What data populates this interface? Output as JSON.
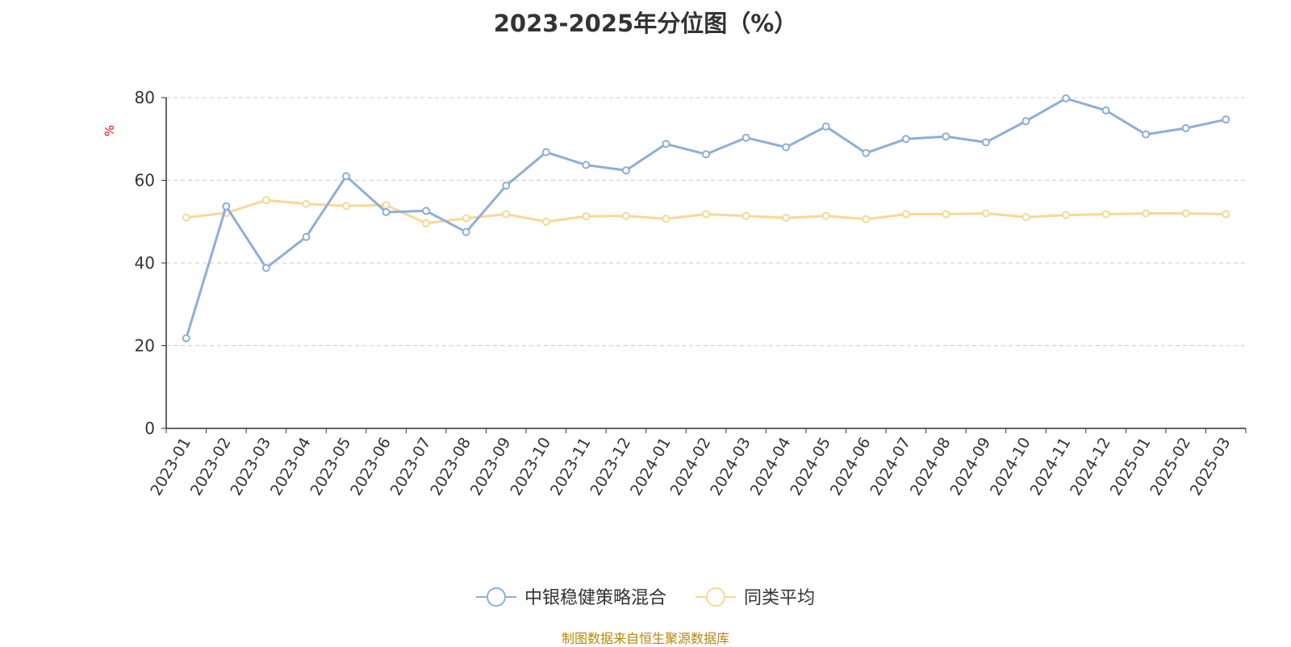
{
  "chart_data": {
    "type": "line",
    "title": "2023-2025年分位图（%）",
    "ylabel": "%",
    "ylim": [
      0,
      80
    ],
    "yticks": [
      0,
      20,
      40,
      60,
      80
    ],
    "grid": true,
    "legend_position": "bottom",
    "categories": [
      "2023-01",
      "2023-02",
      "2023-03",
      "2023-04",
      "2023-05",
      "2023-06",
      "2023-07",
      "2023-08",
      "2023-09",
      "2023-10",
      "2023-11",
      "2023-12",
      "2024-01",
      "2024-02",
      "2024-03",
      "2024-04",
      "2024-05",
      "2024-06",
      "2024-07",
      "2024-08",
      "2024-09",
      "2024-10",
      "2024-11",
      "2024-12",
      "2025-01",
      "2025-02",
      "2025-03"
    ],
    "series": [
      {
        "name": "中银稳健策略混合",
        "color": "#8eaed8",
        "values": [
          21.8,
          53.7,
          38.8,
          46.3,
          61.0,
          52.3,
          52.6,
          47.5,
          58.7,
          66.8,
          63.7,
          62.4,
          68.8,
          66.3,
          70.3,
          68.0,
          73.0,
          66.6,
          70.0,
          70.6,
          69.2,
          74.3,
          79.8,
          76.9,
          71.1,
          72.6,
          74.7
        ]
      },
      {
        "name": "同类平均",
        "color": "#f9d796",
        "values": [
          51.0,
          52.1,
          55.2,
          54.3,
          53.8,
          54.0,
          49.6,
          50.8,
          51.8,
          50.0,
          51.3,
          51.4,
          50.7,
          51.8,
          51.4,
          50.9,
          51.4,
          50.6,
          51.8,
          51.8,
          52.0,
          51.1,
          51.6,
          51.8,
          52.0,
          52.0,
          51.8
        ]
      }
    ]
  },
  "source_text": "制图数据来自恒生聚源数据库"
}
